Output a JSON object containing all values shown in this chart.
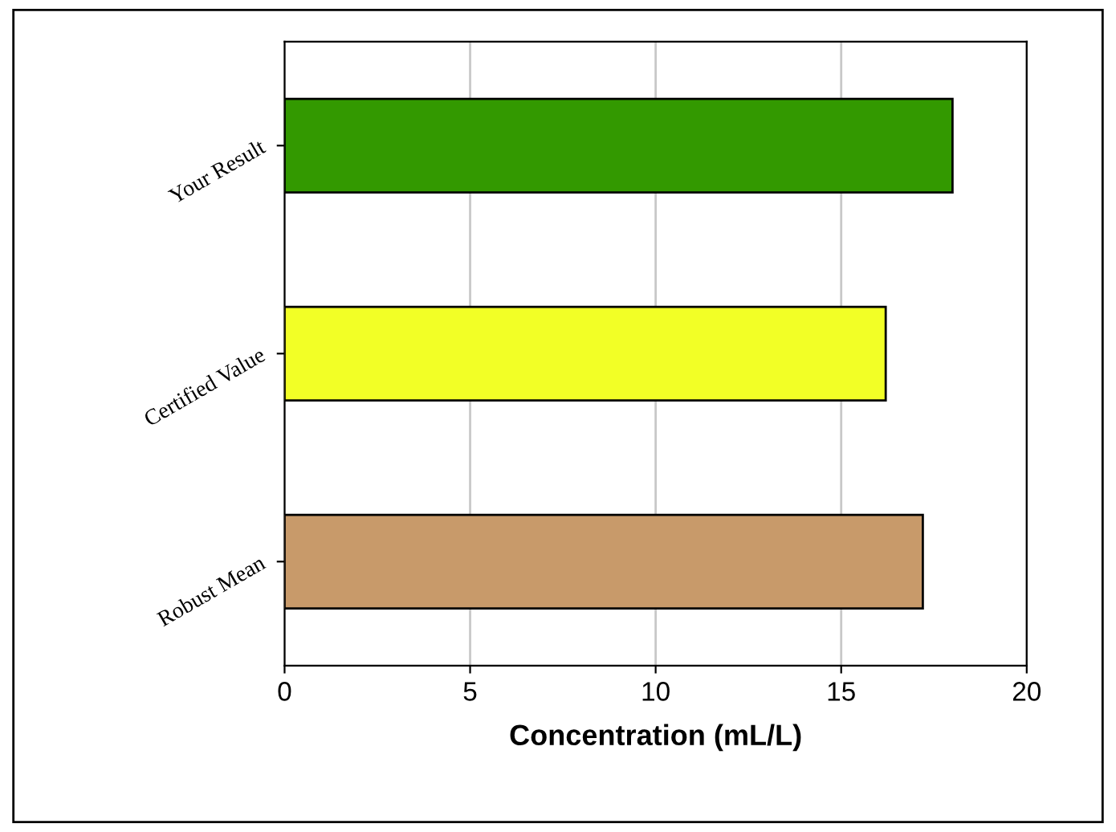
{
  "chart_data": {
    "type": "bar",
    "orientation": "horizontal",
    "xlabel": "Concentration (mL/L)",
    "categories": [
      "Your Result",
      "Certified Value",
      "Robust Mean"
    ],
    "values": [
      18.0,
      16.2,
      17.2
    ],
    "colors": [
      "#339900",
      "#f2ff26",
      "#c89a6a"
    ],
    "xlim": [
      0,
      20
    ],
    "xticks": [
      0,
      5,
      10,
      15,
      20
    ],
    "grid": "x"
  }
}
